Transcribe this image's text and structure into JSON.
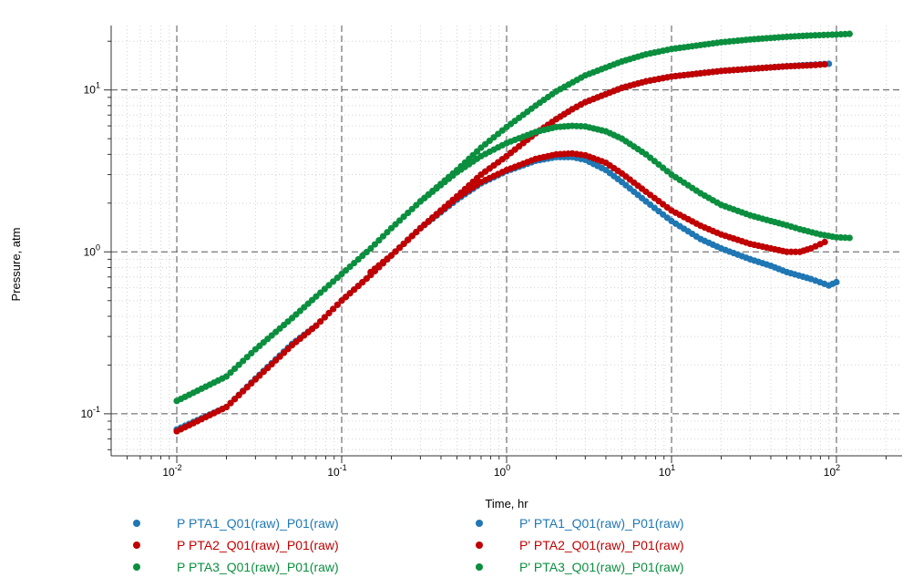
{
  "chart_data": {
    "type": "scatter",
    "title": "",
    "xlabel": "Time, hr",
    "ylabel": "Pressure, atm",
    "xscale": "log",
    "yscale": "log",
    "xlim": [
      0.004,
      250
    ],
    "ylim": [
      0.055,
      25
    ],
    "grid": true,
    "x_ticks": [
      0.01,
      0.1,
      1,
      10,
      100
    ],
    "x_tick_labels": [
      {
        "base": "10",
        "exp": "-2"
      },
      {
        "base": "10",
        "exp": "-1"
      },
      {
        "base": "10",
        "exp": "0"
      },
      {
        "base": "10",
        "exp": "1"
      },
      {
        "base": "10",
        "exp": "2"
      }
    ],
    "y_ticks": [
      0.1,
      1,
      10
    ],
    "y_tick_labels": [
      {
        "base": "10",
        "exp": "-1"
      },
      {
        "base": "10",
        "exp": "0"
      },
      {
        "base": "10",
        "exp": "1"
      }
    ],
    "legend_placement": "bottom",
    "series": [
      {
        "name": "P PTA1_Q01(raw)_P01(raw)",
        "color": "#1f77b4",
        "x": [
          0.01,
          0.02,
          0.03,
          0.05,
          0.07,
          0.1,
          0.15,
          0.2,
          0.3,
          0.5,
          0.7,
          1,
          1.5,
          2,
          2.5,
          3,
          5,
          7,
          10,
          20,
          30,
          50,
          70,
          90
        ],
        "y": [
          0.08,
          0.11,
          0.165,
          0.27,
          0.35,
          0.5,
          0.72,
          0.95,
          1.4,
          2.2,
          3.0,
          3.9,
          5.4,
          6.6,
          7.6,
          8.4,
          10.3,
          11.3,
          12.1,
          13.1,
          13.5,
          14.0,
          14.3,
          14.5
        ]
      },
      {
        "name": "P PTA2_Q01(raw)_P01(raw)",
        "color": "#c00000",
        "x": [
          0.01,
          0.02,
          0.03,
          0.05,
          0.07,
          0.1,
          0.15,
          0.2,
          0.3,
          0.5,
          0.7,
          1,
          1.5,
          2,
          2.5,
          3,
          5,
          7,
          10,
          20,
          30,
          50,
          70,
          85
        ],
        "y": [
          0.078,
          0.11,
          0.163,
          0.265,
          0.35,
          0.5,
          0.72,
          0.95,
          1.4,
          2.2,
          3.0,
          3.9,
          5.4,
          6.6,
          7.6,
          8.4,
          10.3,
          11.3,
          12.1,
          13.1,
          13.5,
          14.0,
          14.2,
          14.4
        ]
      },
      {
        "name": "P PTA3_Q01(raw)_P01(raw)",
        "color": "#0b8f3f",
        "x": [
          0.01,
          0.02,
          0.03,
          0.05,
          0.07,
          0.1,
          0.15,
          0.2,
          0.3,
          0.5,
          0.7,
          1,
          1.5,
          2,
          3,
          5,
          7,
          10,
          20,
          30,
          50,
          70,
          100,
          120
        ],
        "y": [
          0.12,
          0.17,
          0.25,
          0.39,
          0.53,
          0.73,
          1.05,
          1.4,
          2.05,
          3.2,
          4.4,
          5.9,
          8.0,
          9.8,
          12.3,
          15.0,
          16.6,
          17.9,
          19.7,
          20.5,
          21.3,
          21.7,
          22.0,
          22.2
        ]
      },
      {
        "name": "P' PTA1_Q01(raw)_P01(raw)",
        "color": "#1f77b4",
        "x": [
          0.15,
          0.2,
          0.3,
          0.5,
          0.7,
          1,
          1.5,
          2,
          2.5,
          3,
          4,
          5,
          7,
          10,
          15,
          20,
          30,
          40,
          50,
          70,
          90,
          100
        ],
        "y": [
          0.75,
          0.95,
          1.4,
          2.1,
          2.65,
          3.15,
          3.65,
          3.85,
          3.85,
          3.7,
          3.2,
          2.7,
          2.05,
          1.55,
          1.2,
          1.05,
          0.9,
          0.82,
          0.75,
          0.68,
          0.62,
          0.65
        ]
      },
      {
        "name": "P' PTA2_Q01(raw)_P01(raw)",
        "color": "#c00000",
        "x": [
          0.15,
          0.2,
          0.3,
          0.5,
          0.7,
          1,
          1.5,
          2,
          2.5,
          3,
          4,
          5,
          7,
          10,
          15,
          20,
          30,
          40,
          50,
          60,
          70,
          85
        ],
        "y": [
          0.75,
          0.95,
          1.4,
          2.15,
          2.7,
          3.2,
          3.75,
          4.0,
          4.05,
          3.95,
          3.55,
          3.05,
          2.35,
          1.8,
          1.45,
          1.28,
          1.12,
          1.05,
          1.0,
          1.0,
          1.05,
          1.15
        ]
      },
      {
        "name": "P' PTA3_Q01(raw)_P01(raw)",
        "color": "#0b8f3f",
        "x": [
          0.3,
          0.5,
          0.7,
          1,
          1.5,
          2,
          2.5,
          3,
          4,
          5,
          7,
          10,
          15,
          20,
          30,
          40,
          50,
          60,
          80,
          100,
          120
        ],
        "y": [
          2.05,
          3.1,
          3.9,
          4.7,
          5.5,
          5.9,
          6.0,
          5.95,
          5.55,
          5.0,
          4.0,
          3.0,
          2.3,
          1.95,
          1.68,
          1.55,
          1.46,
          1.38,
          1.28,
          1.23,
          1.22
        ]
      }
    ]
  }
}
